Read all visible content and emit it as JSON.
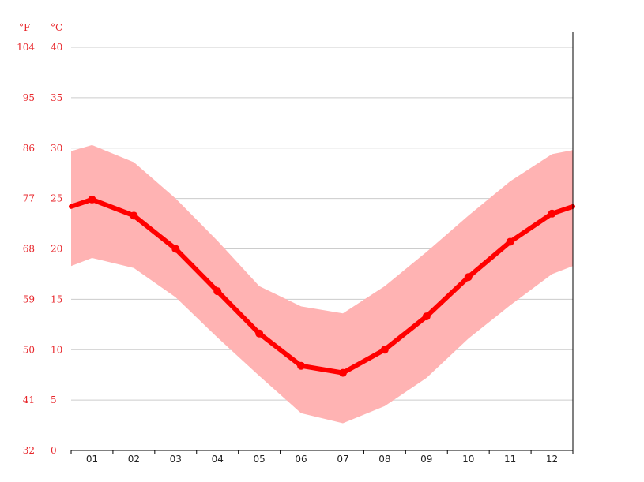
{
  "chart_data": {
    "type": "line",
    "categories": [
      "01",
      "02",
      "03",
      "04",
      "05",
      "06",
      "07",
      "08",
      "09",
      "10",
      "11",
      "12"
    ],
    "series": [
      {
        "role": "mean",
        "values": [
          24.9,
          23.3,
          20.0,
          15.8,
          11.6,
          8.4,
          7.7,
          10.0,
          13.3,
          17.2,
          20.7,
          23.5
        ]
      },
      {
        "role": "band_max",
        "values": [
          30.3,
          28.6,
          25.0,
          20.8,
          16.3,
          14.3,
          13.6,
          16.3,
          19.7,
          23.3,
          26.7,
          29.4
        ]
      },
      {
        "role": "band_min",
        "values": [
          19.1,
          18.1,
          15.2,
          11.2,
          7.4,
          3.7,
          2.7,
          4.4,
          7.2,
          11.1,
          14.4,
          17.5
        ]
      }
    ],
    "edge_values": {
      "left": {
        "mean": 24.2,
        "max": 29.7,
        "min": 18.3
      },
      "right": {
        "mean": 24.2,
        "max": 29.8,
        "min": 18.3
      }
    },
    "y_ticks_c": [
      "0",
      "5",
      "10",
      "15",
      "20",
      "25",
      "30",
      "35",
      "40"
    ],
    "y_ticks_f": [
      "32",
      "41",
      "50",
      "59",
      "68",
      "77",
      "86",
      "95",
      "104"
    ],
    "unit_f": "°F",
    "unit_c": "°C",
    "ylim": [
      0,
      40
    ],
    "grid": true,
    "colors": {
      "line": "#ff0000",
      "band": "#ffb3b3",
      "axis_text": "#e8262b",
      "grid": "#cccccc",
      "x_text": "#222222"
    }
  }
}
